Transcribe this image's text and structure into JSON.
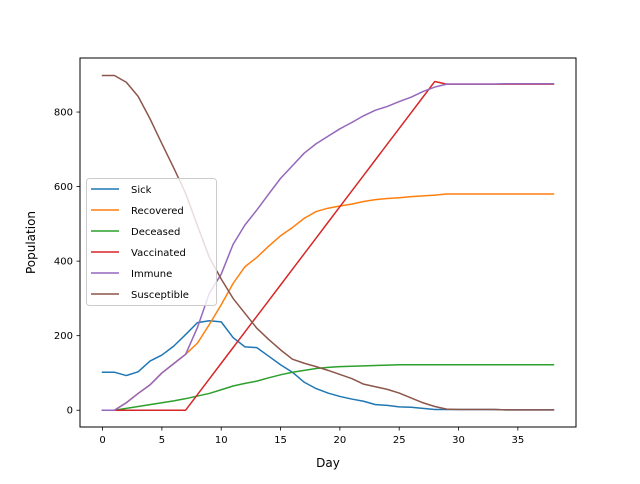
{
  "chart_data": {
    "type": "line",
    "xlabel": "Day",
    "ylabel": "Population",
    "xlim": [
      -1.9,
      39.9
    ],
    "ylim": [
      -45,
      945
    ],
    "xticks": [
      0,
      5,
      10,
      15,
      20,
      25,
      30,
      35
    ],
    "yticks": [
      0,
      200,
      400,
      600,
      800
    ],
    "legend_position": "center-left",
    "grid": false,
    "x": [
      0,
      1,
      2,
      3,
      4,
      5,
      6,
      7,
      8,
      9,
      10,
      11,
      12,
      13,
      14,
      15,
      16,
      17,
      18,
      19,
      20,
      21,
      22,
      23,
      24,
      25,
      26,
      27,
      28,
      29,
      30,
      31,
      32,
      33,
      34,
      35,
      36,
      37,
      38
    ],
    "series": [
      {
        "name": "Sick",
        "color": "#1f77b4",
        "values": [
          102,
          102,
          93,
          103,
          132,
          148,
          172,
          203,
          235,
          240,
          237,
          195,
          170,
          168,
          145,
          122,
          102,
          75,
          58,
          46,
          37,
          30,
          24,
          15,
          13,
          9,
          8,
          5,
          2,
          2,
          2,
          2,
          2,
          2,
          1,
          1,
          1,
          1,
          1
        ]
      },
      {
        "name": "Recovered",
        "color": "#ff7f0e",
        "values": [
          0,
          0,
          20,
          45,
          68,
          100,
          125,
          150,
          180,
          230,
          283,
          340,
          385,
          410,
          440,
          468,
          490,
          515,
          533,
          542,
          548,
          553,
          560,
          565,
          568,
          570,
          573,
          575,
          577,
          580,
          580,
          580,
          580,
          580,
          580,
          580,
          580,
          580,
          580
        ]
      },
      {
        "name": "Deceased",
        "color": "#2ca02c",
        "values": [
          0,
          0,
          5,
          10,
          15,
          20,
          25,
          31,
          38,
          45,
          55,
          65,
          72,
          78,
          87,
          95,
          102,
          107,
          112,
          115,
          117,
          118,
          119,
          120,
          121,
          122,
          122,
          122,
          122,
          122,
          122,
          122,
          122,
          122,
          122,
          122,
          122,
          122,
          122
        ]
      },
      {
        "name": "Vaccinated",
        "color": "#d62728",
        "values": [
          0,
          0,
          0,
          0,
          0,
          0,
          0,
          0,
          42,
          84,
          126,
          168,
          210,
          252,
          294,
          336,
          378,
          420,
          462,
          504,
          546,
          588,
          630,
          672,
          714,
          756,
          798,
          840,
          882,
          875,
          875,
          875,
          875,
          875,
          875,
          875,
          875,
          875,
          875
        ]
      },
      {
        "name": "Immune",
        "color": "#9467bd",
        "values": [
          0,
          0,
          20,
          45,
          68,
          100,
          125,
          150,
          222,
          314,
          365,
          445,
          497,
          537,
          580,
          622,
          656,
          690,
          715,
          735,
          755,
          772,
          790,
          805,
          815,
          828,
          840,
          855,
          867,
          875,
          875,
          875,
          875,
          875,
          876,
          876,
          876,
          876,
          876
        ]
      },
      {
        "name": "Susceptible",
        "color": "#8c564b",
        "values": [
          898,
          898,
          880,
          842,
          782,
          715,
          650,
          582,
          495,
          410,
          352,
          300,
          260,
          220,
          190,
          162,
          137,
          126,
          117,
          107,
          96,
          85,
          70,
          63,
          56,
          46,
          33,
          20,
          10,
          3,
          2,
          2,
          2,
          2,
          1,
          1,
          1,
          1,
          1
        ]
      }
    ]
  }
}
